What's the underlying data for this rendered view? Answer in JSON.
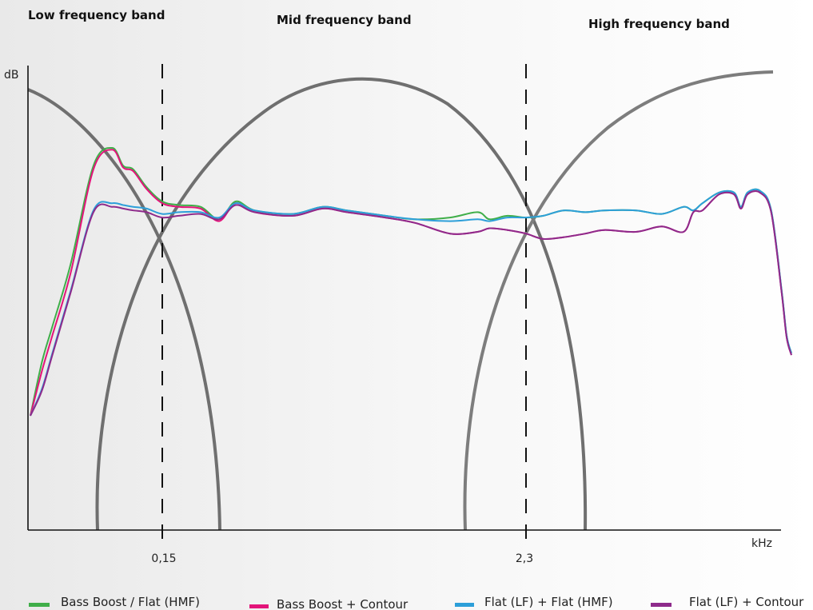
{
  "chart_data": {
    "type": "line",
    "xlabel": "kHz",
    "ylabel": "dB",
    "x_scale": "log",
    "grid": false,
    "legend_position": "bottom",
    "band_titles": [
      "Low frequency band",
      "Mid frequency band",
      "High frequency band"
    ],
    "x_ticks": [
      "0,15",
      "2,3"
    ],
    "crossover_lines": [
      "0,15",
      "2,3"
    ],
    "band_curve_color": "#6f6f6f",
    "series": [
      {
        "name": "Bass Boost / Flat (HMF)",
        "color": "#3fae49",
        "x": [
          0.045,
          0.05,
          0.055,
          0.065,
          0.08,
          0.095,
          0.105,
          0.115,
          0.13,
          0.15,
          0.17,
          0.2,
          0.23,
          0.26,
          0.3,
          0.4,
          0.5,
          0.6,
          0.8,
          1.0,
          1.3,
          1.6,
          1.75,
          2.0,
          2.3,
          2.6,
          3.0,
          3.5,
          4.0,
          5.0,
          6.0,
          7.0,
          7.5,
          8.0,
          9.0,
          10.0,
          10.5,
          11.0,
          12.0,
          13.0,
          14.0,
          14.5,
          15.0
        ],
        "values": [
          -12.5,
          -9.5,
          -7.5,
          -4.0,
          1.5,
          2.5,
          1.5,
          1.3,
          0.3,
          -0.5,
          -0.7,
          -0.8,
          -1.5,
          -0.5,
          -1.0,
          -1.2,
          -0.8,
          -1.0,
          -1.3,
          -1.5,
          -1.4,
          -1.1,
          -1.5,
          -1.3,
          -1.4,
          -1.3,
          -1.0,
          -1.1,
          -1.0,
          -1.0,
          -1.2,
          -0.8,
          -1.0,
          -0.6,
          0.0,
          0.0,
          -0.8,
          0.0,
          0.1,
          -1.0,
          -5.5,
          -8.0,
          -9.0
        ]
      },
      {
        "name": "Bass Boost + Contour",
        "color": "#e3147a",
        "x": [
          0.045,
          0.05,
          0.055,
          0.065,
          0.08,
          0.095,
          0.105,
          0.115,
          0.13,
          0.15,
          0.17,
          0.2,
          0.23,
          0.26,
          0.3,
          0.4,
          0.5,
          0.6,
          0.8,
          1.0,
          1.3,
          1.6,
          1.75,
          2.0,
          2.3,
          2.6,
          3.0,
          3.5,
          4.0,
          5.0,
          6.0,
          7.0,
          7.5,
          8.0,
          9.0,
          10.0,
          10.5,
          11.0,
          12.0,
          13.0,
          14.0,
          14.5,
          15.0
        ],
        "values": [
          -12.5,
          -10.0,
          -8.0,
          -4.5,
          1.3,
          2.4,
          1.4,
          1.2,
          0.2,
          -0.6,
          -0.8,
          -0.9,
          -1.6,
          -0.6,
          -1.1,
          -1.3,
          -0.9,
          -1.1,
          -1.4,
          -1.7,
          -2.3,
          -2.2,
          -2.0,
          -2.1,
          -2.3,
          -2.6,
          -2.5,
          -2.3,
          -2.1,
          -2.2,
          -1.9,
          -2.2,
          -1.1,
          -1.0,
          -0.1,
          -0.1,
          -0.9,
          -0.1,
          0.0,
          -1.1,
          -5.6,
          -8.1,
          -9.1
        ]
      },
      {
        "name": "Flat (LF) + Flat (HMF)",
        "color": "#2d9fd9",
        "x": [
          0.045,
          0.05,
          0.055,
          0.065,
          0.08,
          0.095,
          0.105,
          0.115,
          0.13,
          0.15,
          0.17,
          0.2,
          0.23,
          0.26,
          0.3,
          0.4,
          0.5,
          0.6,
          0.8,
          1.0,
          1.3,
          1.6,
          1.75,
          2.0,
          2.3,
          2.6,
          3.0,
          3.5,
          4.0,
          5.0,
          6.0,
          7.0,
          7.5,
          8.0,
          9.0,
          10.0,
          10.5,
          11.0,
          12.0,
          13.0,
          14.0,
          14.5,
          15.0
        ],
        "values": [
          -12.5,
          -11.0,
          -9.0,
          -5.5,
          -1.0,
          -0.6,
          -0.7,
          -0.8,
          -0.9,
          -1.2,
          -1.1,
          -1.1,
          -1.4,
          -0.6,
          -1.0,
          -1.2,
          -0.8,
          -1.0,
          -1.3,
          -1.5,
          -1.6,
          -1.5,
          -1.6,
          -1.4,
          -1.4,
          -1.3,
          -1.0,
          -1.1,
          -1.0,
          -1.0,
          -1.2,
          -0.8,
          -1.0,
          -0.6,
          0.0,
          0.0,
          -0.8,
          0.0,
          0.1,
          -1.0,
          -5.5,
          -8.0,
          -9.0
        ]
      },
      {
        "name": "Flat (LF) + Contour",
        "color": "#8e2a8b",
        "x": [
          0.045,
          0.05,
          0.055,
          0.065,
          0.08,
          0.095,
          0.105,
          0.115,
          0.13,
          0.15,
          0.17,
          0.2,
          0.23,
          0.26,
          0.3,
          0.4,
          0.5,
          0.6,
          0.8,
          1.0,
          1.3,
          1.6,
          1.75,
          2.0,
          2.3,
          2.6,
          3.0,
          3.5,
          4.0,
          5.0,
          6.0,
          7.0,
          7.5,
          8.0,
          9.0,
          10.0,
          10.5,
          11.0,
          12.0,
          13.0,
          14.0,
          14.5,
          15.0
        ],
        "values": [
          -12.5,
          -11.1,
          -9.1,
          -5.6,
          -1.1,
          -0.8,
          -0.9,
          -1.0,
          -1.1,
          -1.4,
          -1.3,
          -1.2,
          -1.5,
          -0.7,
          -1.1,
          -1.3,
          -0.9,
          -1.1,
          -1.4,
          -1.7,
          -2.3,
          -2.2,
          -2.0,
          -2.1,
          -2.3,
          -2.6,
          -2.5,
          -2.3,
          -2.1,
          -2.2,
          -1.9,
          -2.2,
          -1.1,
          -1.0,
          -0.1,
          -0.1,
          -0.9,
          -0.1,
          0.0,
          -1.1,
          -5.6,
          -8.1,
          -9.1
        ]
      }
    ]
  }
}
